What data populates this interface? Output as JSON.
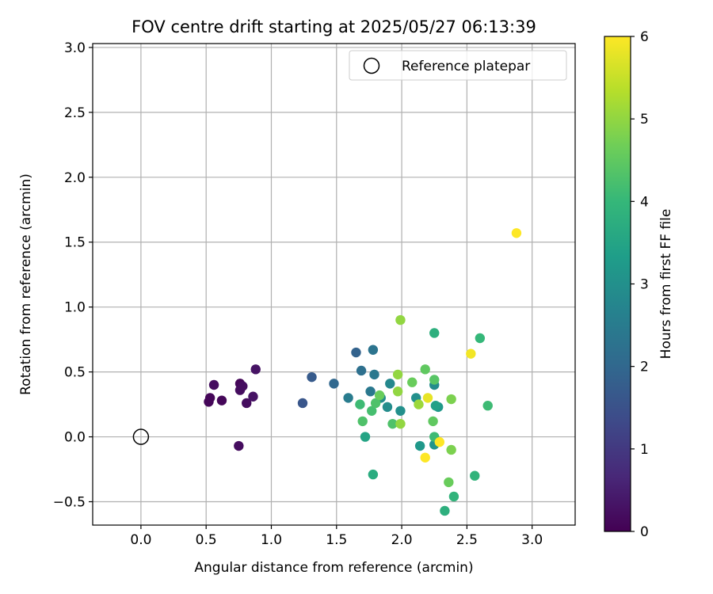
{
  "chart_data": {
    "type": "scatter",
    "title": "FOV centre drift starting at 2025/05/27 06:13:39",
    "xlabel": "Angular distance from reference (arcmin)",
    "ylabel": "Rotation from reference (arcmin)",
    "xlim": [
      -0.37,
      3.33
    ],
    "ylim": [
      -0.68,
      3.03
    ],
    "xticks": [
      0.0,
      0.5,
      1.0,
      1.5,
      2.0,
      2.5,
      3.0
    ],
    "xtick_labels": [
      "0.0",
      "0.5",
      "1.0",
      "1.5",
      "2.0",
      "2.5",
      "3.0"
    ],
    "yticks": [
      -0.5,
      0.0,
      0.5,
      1.0,
      1.5,
      2.0,
      2.5,
      3.0
    ],
    "ytick_labels": [
      "−0.5",
      "0.0",
      "0.5",
      "1.0",
      "1.5",
      "2.0",
      "2.5",
      "3.0"
    ],
    "grid": true,
    "legend": {
      "position": "top-right",
      "entries": [
        "Reference platepar"
      ]
    },
    "reference_point": {
      "x": 0.0,
      "y": 0.0
    },
    "colorbar": {
      "label": "Hours from first FF file",
      "range": [
        0,
        6
      ],
      "ticks": [
        0,
        1,
        2,
        3,
        4,
        5,
        6
      ],
      "colormap": "viridis",
      "stops": [
        "#440154",
        "#482878",
        "#3e4a89",
        "#31688e",
        "#26828e",
        "#1f9e89",
        "#35b779",
        "#6ece58",
        "#b5de2b",
        "#fde725"
      ]
    },
    "points": [
      {
        "x": 0.52,
        "y": 0.27,
        "h": 0.1
      },
      {
        "x": 0.53,
        "y": 0.3,
        "h": 0.1
      },
      {
        "x": 0.56,
        "y": 0.4,
        "h": 0.2
      },
      {
        "x": 0.62,
        "y": 0.28,
        "h": 0.1
      },
      {
        "x": 0.76,
        "y": 0.41,
        "h": 0.1
      },
      {
        "x": 0.76,
        "y": 0.36,
        "h": 0.2
      },
      {
        "x": 0.78,
        "y": 0.39,
        "h": 0.2
      },
      {
        "x": 0.81,
        "y": 0.26,
        "h": 0.2
      },
      {
        "x": 0.86,
        "y": 0.31,
        "h": 0.3
      },
      {
        "x": 0.88,
        "y": 0.52,
        "h": 0.3
      },
      {
        "x": 0.75,
        "y": -0.07,
        "h": 0.2
      },
      {
        "x": 1.24,
        "y": 0.26,
        "h": 1.6
      },
      {
        "x": 1.31,
        "y": 0.46,
        "h": 1.7
      },
      {
        "x": 1.48,
        "y": 0.41,
        "h": 2.0
      },
      {
        "x": 1.59,
        "y": 0.3,
        "h": 2.5
      },
      {
        "x": 1.65,
        "y": 0.65,
        "h": 1.9
      },
      {
        "x": 1.69,
        "y": 0.51,
        "h": 2.2
      },
      {
        "x": 1.76,
        "y": 0.35,
        "h": 2.4
      },
      {
        "x": 1.78,
        "y": 0.67,
        "h": 2.3
      },
      {
        "x": 1.79,
        "y": 0.48,
        "h": 2.4
      },
      {
        "x": 1.84,
        "y": 0.3,
        "h": 2.9
      },
      {
        "x": 1.91,
        "y": 0.41,
        "h": 2.8
      },
      {
        "x": 1.89,
        "y": 0.23,
        "h": 2.9
      },
      {
        "x": 1.99,
        "y": 0.2,
        "h": 3.0
      },
      {
        "x": 2.11,
        "y": 0.3,
        "h": 3.0
      },
      {
        "x": 2.14,
        "y": -0.07,
        "h": 3.2
      },
      {
        "x": 2.25,
        "y": -0.06,
        "h": 3.1
      },
      {
        "x": 2.25,
        "y": 0.4,
        "h": 2.9
      },
      {
        "x": 2.28,
        "y": 0.23,
        "h": 3.2
      },
      {
        "x": 2.26,
        "y": 0.24,
        "h": 3.4
      },
      {
        "x": 1.72,
        "y": 0.0,
        "h": 3.5
      },
      {
        "x": 1.78,
        "y": -0.29,
        "h": 3.7
      },
      {
        "x": 2.25,
        "y": 0.8,
        "h": 3.8
      },
      {
        "x": 2.33,
        "y": -0.57,
        "h": 3.8
      },
      {
        "x": 2.4,
        "y": -0.46,
        "h": 3.9
      },
      {
        "x": 2.56,
        "y": -0.3,
        "h": 3.9
      },
      {
        "x": 2.6,
        "y": 0.76,
        "h": 4.0
      },
      {
        "x": 2.66,
        "y": 0.24,
        "h": 4.1
      },
      {
        "x": 1.68,
        "y": 0.25,
        "h": 4.1
      },
      {
        "x": 1.7,
        "y": 0.12,
        "h": 4.3
      },
      {
        "x": 1.77,
        "y": 0.2,
        "h": 4.2
      },
      {
        "x": 1.8,
        "y": 0.26,
        "h": 4.3
      },
      {
        "x": 1.83,
        "y": 0.32,
        "h": 4.6
      },
      {
        "x": 1.93,
        "y": 0.1,
        "h": 4.3
      },
      {
        "x": 2.08,
        "y": 0.42,
        "h": 4.6
      },
      {
        "x": 2.18,
        "y": 0.52,
        "h": 4.5
      },
      {
        "x": 2.24,
        "y": 0.12,
        "h": 4.5
      },
      {
        "x": 2.25,
        "y": 0.44,
        "h": 4.4
      },
      {
        "x": 2.25,
        "y": 0.0,
        "h": 4.1
      },
      {
        "x": 2.36,
        "y": -0.35,
        "h": 4.6
      },
      {
        "x": 2.38,
        "y": -0.1,
        "h": 4.8
      },
      {
        "x": 2.38,
        "y": 0.29,
        "h": 4.8
      },
      {
        "x": 1.97,
        "y": 0.48,
        "h": 5.0
      },
      {
        "x": 1.97,
        "y": 0.35,
        "h": 5.0
      },
      {
        "x": 1.99,
        "y": 0.9,
        "h": 5.0
      },
      {
        "x": 1.99,
        "y": 0.1,
        "h": 5.0
      },
      {
        "x": 2.13,
        "y": 0.25,
        "h": 5.1
      },
      {
        "x": 2.2,
        "y": 0.3,
        "h": 5.8
      },
      {
        "x": 2.18,
        "y": -0.16,
        "h": 6.0
      },
      {
        "x": 2.29,
        "y": -0.04,
        "h": 6.0
      },
      {
        "x": 2.53,
        "y": 0.64,
        "h": 5.9
      },
      {
        "x": 2.88,
        "y": 1.57,
        "h": 6.0
      }
    ]
  }
}
